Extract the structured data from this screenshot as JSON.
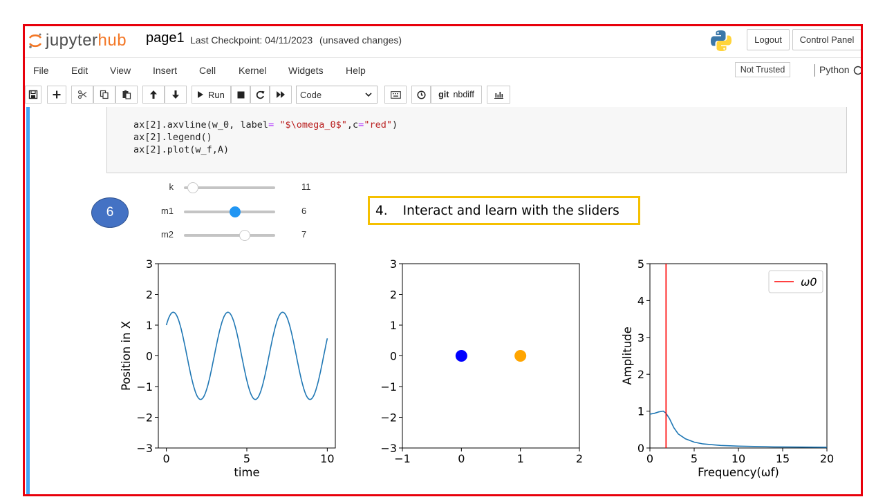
{
  "header": {
    "logo_jupyter": "jupyter",
    "logo_hub": "hub",
    "notebook_name": "page1",
    "checkpoint": "Last Checkpoint: 04/11/2023",
    "unsaved": "(unsaved changes)",
    "logout_label": "Logout",
    "control_panel_label": "Control Panel"
  },
  "menu": {
    "items": [
      "File",
      "Edit",
      "View",
      "Insert",
      "Cell",
      "Kernel",
      "Widgets",
      "Help"
    ],
    "trust_label": "Not Trusted",
    "kernel_label": "Python"
  },
  "toolbar": {
    "run_label": "Run",
    "cell_type": "Code",
    "git_label": "git",
    "nbdiff_label": "nbdiff"
  },
  "code": {
    "line1_a": "ax[2].axvline(w_0, label",
    "line1_eq": "=",
    "line1_str1": "\"$\\omega_0$\"",
    "line1_b": ",c",
    "line1_str2": "\"red\"",
    "line1_c": ")",
    "line2": "ax[2].legend()",
    "line3": "ax[2].plot(w_f,A)"
  },
  "sliders": [
    {
      "label": "k",
      "value": "11",
      "fraction": 0.1
    },
    {
      "label": "m1",
      "value": "6",
      "fraction": 0.56
    },
    {
      "label": "m2",
      "value": "7",
      "fraction": 0.67
    }
  ],
  "annotations": {
    "step_badge": "6",
    "callout_number": "4.",
    "callout_text": "Interact and learn with the sliders"
  },
  "colors": {
    "frame": "#e8000b",
    "cell_bar": "#42a5f5",
    "slider_active": "#2196f3",
    "callout_border": "#f5c000",
    "badge": "#4472c4",
    "series": "#1f77b4",
    "mass1": "#0000ff",
    "mass2": "#ffa500",
    "omega0_line": "#ff0000"
  },
  "chart_data": [
    {
      "type": "line",
      "xlabel": "time",
      "ylabel": "Position in X",
      "xlim": [
        -0.5,
        10.5
      ],
      "ylim": [
        -3,
        3
      ],
      "xticks": [
        "0",
        "5",
        "10"
      ],
      "yticks": [
        "−3",
        "−2",
        "−1",
        "0",
        "1",
        "2",
        "3"
      ],
      "series": [
        {
          "name": "position",
          "x_start": 0,
          "x_end": 10,
          "amplitude": 1.42,
          "period": 3.4,
          "phase_start_value": 1.0
        }
      ]
    },
    {
      "type": "scatter",
      "xlim": [
        -1,
        2
      ],
      "ylim": [
        -3,
        3
      ],
      "xticks": [
        "−1",
        "0",
        "1",
        "2"
      ],
      "yticks": [
        "−3",
        "−2",
        "−1",
        "0",
        "1",
        "2",
        "3"
      ],
      "points": [
        {
          "name": "m1",
          "x": 0,
          "y": 0,
          "color": "#0000ff"
        },
        {
          "name": "m2",
          "x": 1,
          "y": 0,
          "color": "#ffa500"
        }
      ]
    },
    {
      "type": "line",
      "xlabel": "Frequency(ωf)",
      "ylabel": "Amplitude",
      "xlim": [
        0,
        20
      ],
      "ylim": [
        0,
        5
      ],
      "xticks": [
        "0",
        "5",
        "10",
        "15",
        "20"
      ],
      "yticks": [
        "0",
        "1",
        "2",
        "3",
        "4",
        "5"
      ],
      "legend": [
        "ω0"
      ],
      "axvline": 1.82,
      "series": [
        {
          "name": "A",
          "x": [
            0,
            0.5,
            1,
            1.5,
            1.8,
            2.2,
            2.7,
            3.2,
            4,
            5,
            6,
            8,
            10,
            14,
            20
          ],
          "y": [
            0.92,
            0.94,
            0.98,
            1.0,
            0.95,
            0.8,
            0.55,
            0.38,
            0.25,
            0.16,
            0.11,
            0.07,
            0.05,
            0.03,
            0.02
          ]
        }
      ]
    }
  ]
}
